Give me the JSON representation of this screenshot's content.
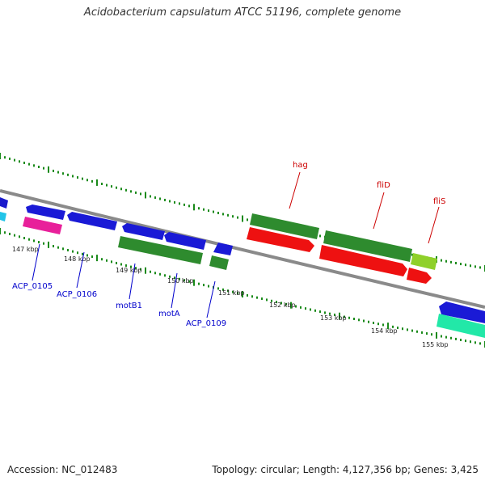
{
  "title": "Acidobacterium capsulatum ATCC 51196, complete genome",
  "footer": {
    "accession": "Accession: NC_012483",
    "summary": "Topology: circular; Length: 4,127,356 bp; Genes: 3,425"
  },
  "colors": {
    "backbone": "#888888",
    "tick": "#1a8a1a",
    "label_blue": "#0000cc",
    "label_red": "#cc0000"
  },
  "kbp_labels": [
    "147 kbp",
    "148 kbp",
    "149 kbp",
    "150 kbp",
    "151 kbp",
    "152 kbp",
    "153 kbp",
    "154 kbp",
    "155 kbp"
  ],
  "gene_labels": {
    "acp0105": "ACP_0105",
    "acp0106": "ACP_0106",
    "motb1": "motB1",
    "mota": "motA",
    "acp0109": "ACP_0109",
    "hag": "hag",
    "flid": "fliD",
    "flis": "fliS"
  }
}
